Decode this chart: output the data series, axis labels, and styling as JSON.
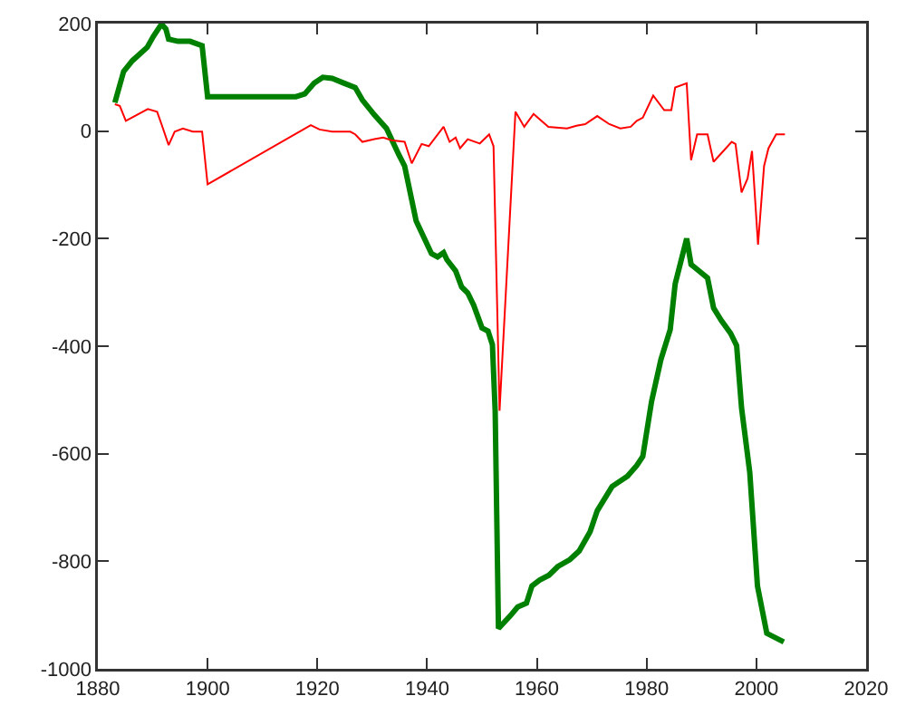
{
  "chart_data": {
    "type": "line",
    "xlim": [
      1880,
      2020
    ],
    "ylim": [
      -1000,
      200
    ],
    "xticks": [
      1880,
      1900,
      1920,
      1940,
      1960,
      1980,
      2000,
      2020
    ],
    "yticks": [
      -1000,
      -800,
      -600,
      -400,
      -200,
      0,
      200
    ],
    "grid": false,
    "marker": "none",
    "line_style": "solid",
    "series": [
      {
        "color": "#008000",
        "x": [
          1883.1,
          1884.7,
          1886.3,
          1889,
          1890.1,
          1891.6,
          1892.4,
          1892.9,
          1894.6,
          1896.8,
          1899,
          1900,
          1916.1,
          1917.7,
          1919.4,
          1921,
          1922.7,
          1924.9,
          1926.9,
          1928.2,
          1930.4,
          1932.6,
          1934.8,
          1935.9,
          1938,
          1940.8,
          1941.9,
          1943,
          1943.6,
          1945.2,
          1946.3,
          1947.4,
          1948.5,
          1950,
          1951.1,
          1951.9,
          1952.4,
          1953,
          1955.1,
          1956.5,
          1958.1,
          1959.1,
          1960.5,
          1962.2,
          1963.8,
          1966,
          1967.7,
          1969.7,
          1971,
          1973.7,
          1976.5,
          1978.2,
          1979.3,
          1980.9,
          1982.6,
          1984.3,
          1985.2,
          1987.3,
          1988.1,
          1991.1,
          1992.2,
          1993.6,
          1995.3,
          1996.4,
          1997.3,
          1998.8,
          2000.2,
          2001.9,
          2005
        ],
        "values": [
          53,
          111,
          131,
          156,
          176,
          199,
          190,
          171,
          167,
          167,
          159,
          64,
          64,
          69,
          89,
          100,
          98,
          89,
          81,
          58,
          30,
          5,
          -43,
          -65,
          -167,
          -228,
          -234,
          -226,
          -239,
          -260,
          -290,
          -301,
          -324,
          -366,
          -372,
          -397,
          -520,
          -925,
          -902,
          -885,
          -878,
          -846,
          -835,
          -826,
          -810,
          -797,
          -781,
          -745,
          -706,
          -661,
          -642,
          -622,
          -605,
          -503,
          -425,
          -369,
          -284,
          -200,
          -248,
          -273,
          -329,
          -352,
          -376,
          -399,
          -515,
          -635,
          -846,
          -934,
          -950
        ]
      },
      {
        "color": "#ff0000",
        "x": [
          1883.1,
          1884,
          1885.1,
          1889.1,
          1890.8,
          1891.6,
          1892.9,
          1894,
          1895.5,
          1897.3,
          1899,
          1900,
          1918.8,
          1920.4,
          1922.7,
          1926,
          1926.9,
          1928.2,
          1930.4,
          1932,
          1933.5,
          1935.9,
          1937.2,
          1939,
          1940.3,
          1943,
          1944.1,
          1945.2,
          1946,
          1947.4,
          1949.6,
          1951.3,
          1952.1,
          1953.2,
          1956.1,
          1957.7,
          1959.4,
          1962.1,
          1965.5,
          1967.2,
          1968.8,
          1971,
          1973.2,
          1975.2,
          1977.1,
          1978.2,
          1979.3,
          1981.2,
          1983.2,
          1984.5,
          1985.2,
          1987.3,
          1988.1,
          1989.2,
          1991.1,
          1992.2,
          1995.5,
          1996.2,
          1997.3,
          1998.4,
          1999.2,
          2000.3,
          2001.4,
          2002.2,
          2003.6,
          2005.2
        ],
        "values": [
          50,
          47,
          19,
          41,
          36,
          13,
          -26,
          -1,
          5,
          -1,
          -1,
          -99,
          11,
          3,
          -1,
          -1,
          -6,
          -20,
          -15,
          -12,
          -17,
          -20,
          -60,
          -24,
          -28,
          8,
          -20,
          -12,
          -32,
          -15,
          -23,
          -6,
          -28,
          -520,
          36,
          8,
          32,
          8,
          5,
          10,
          13,
          28,
          13,
          5,
          8,
          19,
          25,
          66,
          39,
          39,
          81,
          89,
          -54,
          -6,
          -6,
          -57,
          -20,
          -24,
          -114,
          -88,
          -37,
          -211,
          -65,
          -32,
          -6,
          -6
        ]
      }
    ]
  }
}
